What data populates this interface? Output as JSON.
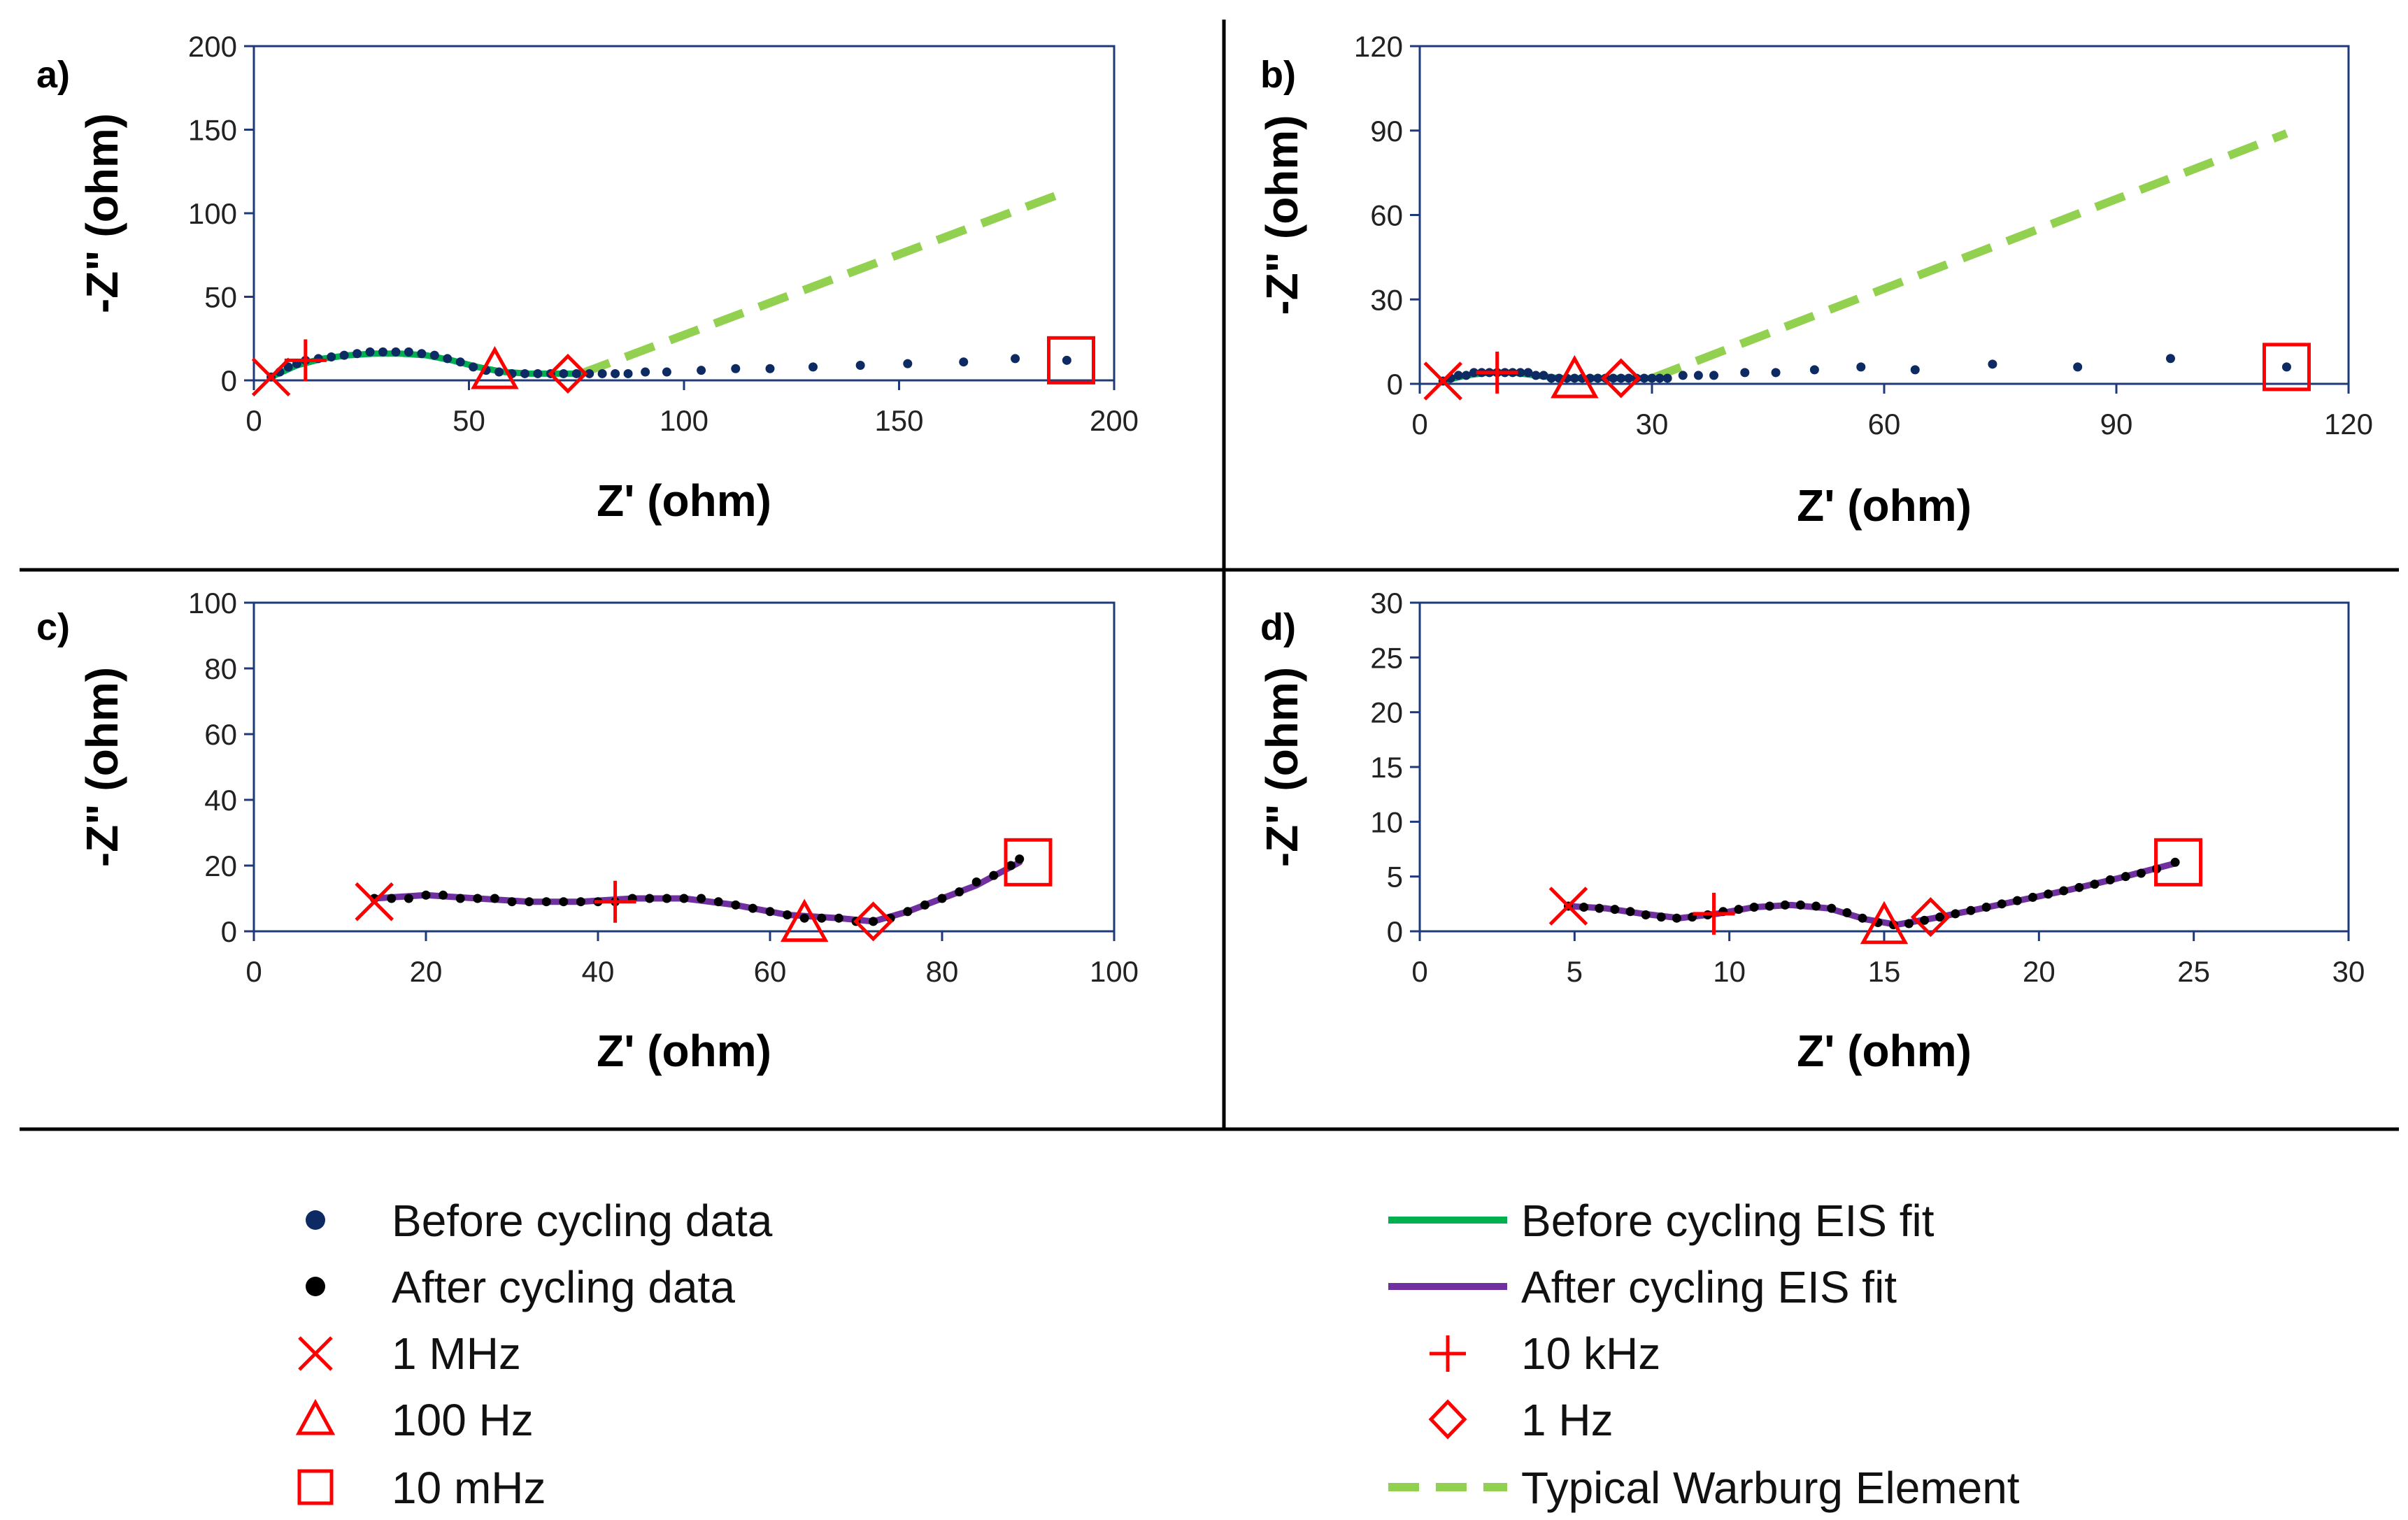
{
  "colors": {
    "before_data": "#0d2a63",
    "after_data": "#000000",
    "before_fit": "#00b04f",
    "after_fit": "#7030a0",
    "marker": "#ff0000",
    "warburg": "#92d050",
    "axis": "#1f3a7a",
    "divider": "#000000"
  },
  "chart_data": [
    {
      "type": "scatter",
      "panel_label": "a)",
      "xlabel": "Z' (ohm)",
      "ylabel": "-Z\" (ohm)",
      "xlim": [
        0,
        200
      ],
      "ylim": [
        0,
        200
      ],
      "xticks": [
        0,
        50,
        100,
        150,
        200
      ],
      "yticks": [
        0,
        50,
        100,
        150,
        200
      ],
      "xtick_labels": [
        "0",
        "50",
        "100",
        "150",
        "200"
      ],
      "ytick_labels": [
        "0",
        "50",
        "100",
        "150",
        "200"
      ],
      "data_points": [
        [
          4,
          2
        ],
        [
          6,
          5
        ],
        [
          8,
          8
        ],
        [
          10,
          10
        ],
        [
          12,
          12
        ],
        [
          15,
          13
        ],
        [
          18,
          14
        ],
        [
          21,
          15
        ],
        [
          24,
          16
        ],
        [
          27,
          17
        ],
        [
          30,
          17
        ],
        [
          33,
          17
        ],
        [
          36,
          17
        ],
        [
          39,
          16
        ],
        [
          42,
          15
        ],
        [
          45,
          13
        ],
        [
          48,
          11
        ],
        [
          51,
          8
        ],
        [
          54,
          6
        ],
        [
          57,
          5
        ],
        [
          60,
          4
        ],
        [
          63,
          4
        ],
        [
          66,
          4
        ],
        [
          69,
          4
        ],
        [
          72,
          4
        ],
        [
          75,
          4
        ],
        [
          78,
          4
        ],
        [
          81,
          4
        ],
        [
          84,
          4
        ],
        [
          87,
          4
        ],
        [
          91,
          5
        ],
        [
          96,
          5
        ],
        [
          104,
          6
        ],
        [
          112,
          7
        ],
        [
          120,
          7
        ],
        [
          130,
          8
        ],
        [
          141,
          9
        ],
        [
          152,
          10
        ],
        [
          165,
          11
        ],
        [
          177,
          13
        ],
        [
          189,
          12
        ]
      ],
      "fit_line": [
        [
          4,
          2
        ],
        [
          10,
          9
        ],
        [
          16,
          13
        ],
        [
          22,
          15
        ],
        [
          28,
          16
        ],
        [
          34,
          16
        ],
        [
          40,
          15
        ],
        [
          46,
          12
        ],
        [
          52,
          8
        ],
        [
          58,
          5
        ],
        [
          64,
          4
        ],
        [
          70,
          4
        ],
        [
          76,
          4
        ]
      ],
      "warburg": [
        [
          76,
          4
        ],
        [
          189,
          113
        ]
      ],
      "markers": {
        "1 MHz": [
          4,
          2
        ],
        "10 kHz": [
          12,
          12
        ],
        "100 Hz": [
          56,
          5
        ],
        "1 Hz": [
          73,
          4
        ],
        "10 mHz": [
          190,
          12
        ]
      }
    },
    {
      "type": "scatter",
      "panel_label": "b)",
      "xlabel": "Z' (ohm)",
      "ylabel": "-Z\" (ohm)",
      "xlim": [
        0,
        120
      ],
      "ylim": [
        0,
        120
      ],
      "xticks": [
        0,
        30,
        60,
        90,
        120
      ],
      "yticks": [
        0,
        30,
        60,
        90,
        120
      ],
      "xtick_labels": [
        "0",
        "30",
        "60",
        "90",
        "120"
      ],
      "ytick_labels": [
        "0",
        "30",
        "60",
        "90",
        "120"
      ],
      "data_points": [
        [
          3,
          1
        ],
        [
          4,
          2
        ],
        [
          5,
          3
        ],
        [
          6,
          3
        ],
        [
          7,
          4
        ],
        [
          8,
          4
        ],
        [
          9,
          4
        ],
        [
          10,
          4
        ],
        [
          11,
          4
        ],
        [
          12,
          4
        ],
        [
          13,
          4
        ],
        [
          14,
          4
        ],
        [
          15,
          3
        ],
        [
          16,
          3
        ],
        [
          17,
          2
        ],
        [
          18,
          2
        ],
        [
          19,
          2
        ],
        [
          20,
          2
        ],
        [
          21,
          2
        ],
        [
          22,
          2
        ],
        [
          23,
          2
        ],
        [
          24,
          2
        ],
        [
          25,
          2
        ],
        [
          26,
          2
        ],
        [
          27,
          2
        ],
        [
          28,
          2
        ],
        [
          29,
          2
        ],
        [
          30,
          2
        ],
        [
          31,
          2
        ],
        [
          32,
          2
        ],
        [
          34,
          3
        ],
        [
          36,
          3
        ],
        [
          38,
          3
        ],
        [
          42,
          4
        ],
        [
          46,
          4
        ],
        [
          51,
          5
        ],
        [
          57,
          6
        ],
        [
          64,
          5
        ],
        [
          74,
          7
        ],
        [
          85,
          6
        ],
        [
          97,
          9
        ],
        [
          112,
          6
        ]
      ],
      "fit_line": [
        [
          3,
          1
        ],
        [
          6,
          3
        ],
        [
          9,
          4
        ],
        [
          12,
          4
        ],
        [
          15,
          3
        ],
        [
          18,
          2
        ],
        [
          22,
          2
        ],
        [
          26,
          2
        ],
        [
          30,
          2
        ]
      ],
      "warburg": [
        [
          30,
          2
        ],
        [
          112,
          89
        ]
      ],
      "markers": {
        "1 MHz": [
          3,
          1
        ],
        "10 kHz": [
          10,
          4
        ],
        "100 Hz": [
          20,
          1
        ],
        "1 Hz": [
          26,
          2
        ],
        "10 mHz": [
          112,
          6
        ]
      }
    },
    {
      "type": "scatter",
      "panel_label": "c)",
      "xlabel": "Z' (ohm)",
      "ylabel": "-Z\" (ohm)",
      "xlim": [
        0,
        100
      ],
      "ylim": [
        0,
        100
      ],
      "xticks": [
        0,
        20,
        40,
        60,
        80,
        100
      ],
      "yticks": [
        0,
        20,
        40,
        60,
        80,
        100
      ],
      "xtick_labels": [
        "0",
        "20",
        "40",
        "60",
        "80",
        "100"
      ],
      "ytick_labels": [
        "0",
        "20",
        "40",
        "60",
        "80",
        "100"
      ],
      "data_points": [
        [
          14,
          10
        ],
        [
          16,
          10
        ],
        [
          18,
          10
        ],
        [
          20,
          11
        ],
        [
          22,
          11
        ],
        [
          24,
          10
        ],
        [
          26,
          10
        ],
        [
          28,
          10
        ],
        [
          30,
          9
        ],
        [
          32,
          9
        ],
        [
          34,
          9
        ],
        [
          36,
          9
        ],
        [
          38,
          9
        ],
        [
          40,
          9
        ],
        [
          42,
          9
        ],
        [
          44,
          10
        ],
        [
          46,
          10
        ],
        [
          48,
          10
        ],
        [
          50,
          10
        ],
        [
          52,
          10
        ],
        [
          54,
          9
        ],
        [
          56,
          8
        ],
        [
          58,
          7
        ],
        [
          60,
          6
        ],
        [
          62,
          5
        ],
        [
          64,
          4
        ],
        [
          66,
          4
        ],
        [
          68,
          4
        ],
        [
          70,
          3
        ],
        [
          72,
          3
        ],
        [
          74,
          4
        ],
        [
          76,
          6
        ],
        [
          78,
          8
        ],
        [
          80,
          10
        ],
        [
          82,
          12
        ],
        [
          84,
          15
        ],
        [
          86,
          17
        ],
        [
          88,
          20
        ],
        [
          89,
          22
        ]
      ],
      "fit_line": [
        [
          14,
          10
        ],
        [
          20,
          11
        ],
        [
          26,
          10
        ],
        [
          32,
          9
        ],
        [
          38,
          9
        ],
        [
          44,
          10
        ],
        [
          50,
          10
        ],
        [
          56,
          8
        ],
        [
          62,
          5
        ],
        [
          68,
          4
        ],
        [
          72,
          3
        ],
        [
          76,
          6
        ],
        [
          80,
          10
        ],
        [
          84,
          14
        ],
        [
          89,
          21
        ]
      ],
      "markers": {
        "1 MHz": [
          14,
          9
        ],
        "10 kHz": [
          42,
          9
        ],
        "100 Hz": [
          64,
          2
        ],
        "1 Hz": [
          72,
          3
        ],
        "10 mHz": [
          90,
          21
        ]
      }
    },
    {
      "type": "scatter",
      "panel_label": "d)",
      "xlabel": "Z' (ohm)",
      "ylabel": "-Z\" (ohm)",
      "xlim": [
        0,
        30
      ],
      "ylim": [
        0,
        30
      ],
      "xticks": [
        0,
        5,
        10,
        15,
        20,
        25,
        30
      ],
      "yticks": [
        0,
        5,
        10,
        15,
        20,
        25,
        30
      ],
      "xtick_labels": [
        "0",
        "5",
        "10",
        "15",
        "20",
        "25",
        "30"
      ],
      "ytick_labels": [
        "0",
        "5",
        "10",
        "15",
        "20",
        "25",
        "30"
      ],
      "data_points": [
        [
          4.8,
          2.3
        ],
        [
          5.3,
          2.2
        ],
        [
          5.8,
          2.1
        ],
        [
          6.3,
          2.0
        ],
        [
          6.8,
          1.8
        ],
        [
          7.3,
          1.5
        ],
        [
          7.8,
          1.3
        ],
        [
          8.3,
          1.2
        ],
        [
          8.8,
          1.3
        ],
        [
          9.3,
          1.5
        ],
        [
          9.8,
          1.8
        ],
        [
          10.3,
          2.0
        ],
        [
          10.8,
          2.2
        ],
        [
          11.3,
          2.3
        ],
        [
          11.8,
          2.4
        ],
        [
          12.3,
          2.4
        ],
        [
          12.8,
          2.3
        ],
        [
          13.3,
          2.1
        ],
        [
          13.8,
          1.7
        ],
        [
          14.3,
          1.2
        ],
        [
          14.8,
          0.8
        ],
        [
          15.3,
          0.6
        ],
        [
          15.8,
          0.7
        ],
        [
          16.3,
          1.0
        ],
        [
          16.8,
          1.3
        ],
        [
          17.3,
          1.6
        ],
        [
          17.8,
          1.9
        ],
        [
          18.3,
          2.2
        ],
        [
          18.8,
          2.5
        ],
        [
          19.3,
          2.8
        ],
        [
          19.8,
          3.1
        ],
        [
          20.3,
          3.4
        ],
        [
          20.8,
          3.7
        ],
        [
          21.3,
          4.0
        ],
        [
          21.8,
          4.3
        ],
        [
          22.3,
          4.7
        ],
        [
          22.8,
          5.0
        ],
        [
          23.3,
          5.3
        ],
        [
          23.8,
          5.7
        ],
        [
          24.4,
          6.3
        ]
      ],
      "fit_line": [
        [
          4.8,
          2.3
        ],
        [
          6.0,
          2.1
        ],
        [
          7.2,
          1.6
        ],
        [
          8.4,
          1.2
        ],
        [
          9.6,
          1.6
        ],
        [
          10.8,
          2.2
        ],
        [
          12.0,
          2.4
        ],
        [
          13.2,
          2.1
        ],
        [
          14.4,
          1.1
        ],
        [
          15.4,
          0.6
        ],
        [
          16.6,
          1.2
        ],
        [
          18.0,
          2.0
        ],
        [
          19.5,
          2.9
        ],
        [
          21.0,
          3.8
        ],
        [
          22.5,
          4.8
        ],
        [
          24.4,
          6.2
        ]
      ],
      "markers": {
        "1 MHz": [
          4.8,
          2.3
        ],
        "10 kHz": [
          9.5,
          1.6
        ],
        "100 Hz": [
          15.0,
          0.4
        ],
        "1 Hz": [
          16.5,
          1.3
        ],
        "10 mHz": [
          24.5,
          6.3
        ]
      }
    }
  ],
  "legend": {
    "before_data": "Before cycling data",
    "after_data": "After cycling data",
    "m_1mhz": "1 MHz",
    "m_100hz": "100 Hz",
    "m_10mhz": "10 mHz",
    "before_fit": "Before cycling EIS fit",
    "after_fit": "After cycling EIS fit",
    "m_10khz": "10 kHz",
    "m_1hz": "1 Hz",
    "warburg": "Typical Warburg Element"
  }
}
